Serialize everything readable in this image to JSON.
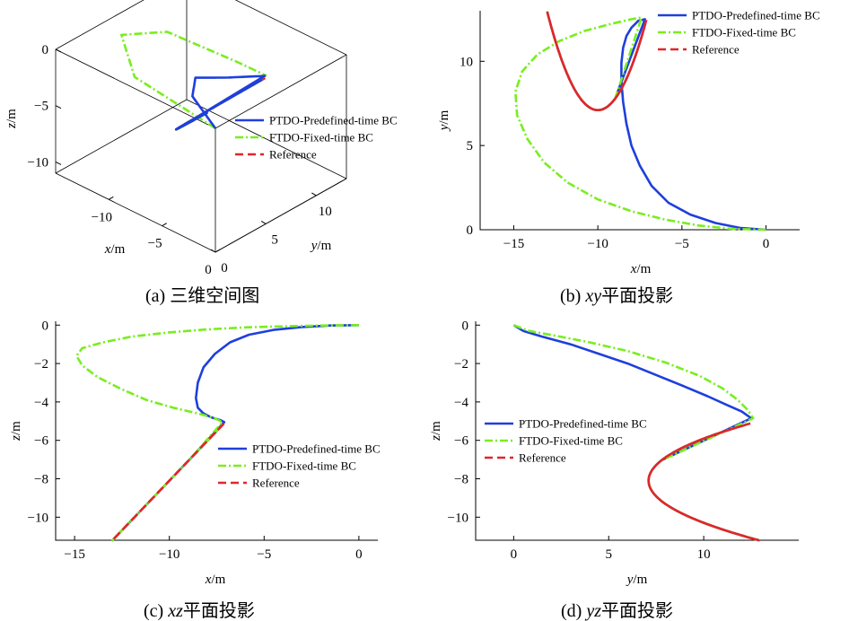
{
  "legend": {
    "pred": "PTDO-Predefined-time BC",
    "fixed": "FTDO-Fixed-time BC",
    "ref": "Reference"
  },
  "colors": {
    "pred": "#1f3fdc",
    "fixed": "#78ee1e",
    "ref": "#e2252b"
  },
  "captions": {
    "a": {
      "label": "(a) ",
      "var": "",
      "text": "三维空间图"
    },
    "b": {
      "label": "(b) ",
      "var": "xy",
      "text": "平面投影"
    },
    "c": {
      "label": "(c) ",
      "var": "xz",
      "text": "平面投影"
    },
    "d": {
      "label": "(d) ",
      "var": "yz",
      "text": "平面投影"
    }
  },
  "axis_labels": {
    "a": {
      "x": "x/m",
      "y": "y/m",
      "z": "z/m"
    },
    "b": {
      "x": "x/m",
      "y": "y/m"
    },
    "c": {
      "x": "x/m",
      "y": "z/m"
    },
    "d": {
      "x": "y/m",
      "y": "z/m"
    }
  },
  "chart_data": [
    {
      "id": "a",
      "type": "line",
      "projection": "3d",
      "xlim": [
        -15,
        0
      ],
      "ylim": [
        0,
        13
      ],
      "zlim": [
        -11,
        0
      ],
      "xticks": [
        -10,
        -5,
        0
      ],
      "yticks": [
        0,
        5,
        10
      ],
      "zticks": [
        0,
        -5,
        -10
      ],
      "legend_position": "center-right",
      "series": [
        {
          "name": "PTDO-Predefined-time BC",
          "key": "pred",
          "dash": "solid",
          "z_from": 0
        },
        {
          "name": "FTDO-Fixed-time BC",
          "key": "fixed",
          "dash": "dashdot",
          "z_from": 0
        },
        {
          "name": "Reference",
          "key": "ref",
          "dash": "dashed",
          "z_from": 0
        }
      ]
    },
    {
      "id": "b",
      "type": "line",
      "xlim": [
        -17,
        2
      ],
      "ylim": [
        0,
        13
      ],
      "xticks": [
        -15,
        -10,
        -5,
        0
      ],
      "yticks": [
        0,
        5,
        10
      ],
      "legend_position": "top-right",
      "series": [
        {
          "name": "PTDO-Predefined-time BC",
          "key": "pred",
          "dash": "solid",
          "x": [
            0,
            -1.5,
            -3,
            -4.5,
            -5.8,
            -6.8,
            -7.5,
            -8.0,
            -8.3,
            -8.5,
            -8.6,
            -8.6,
            -8.5,
            -8.3,
            -8.0,
            -7.6,
            -7.2
          ],
          "y": [
            0,
            0.1,
            0.4,
            0.9,
            1.6,
            2.6,
            3.8,
            5.0,
            6.3,
            7.6,
            8.8,
            9.9,
            10.8,
            11.5,
            12.0,
            12.4,
            12.5
          ]
        },
        {
          "name": "FTDO-Fixed-time BC",
          "key": "fixed",
          "dash": "dashdot",
          "x": [
            0,
            -2,
            -4,
            -6,
            -8,
            -10,
            -11.8,
            -13.2,
            -14.2,
            -14.8,
            -14.9,
            -14.5,
            -13.6,
            -12.3,
            -10.8,
            -9.3,
            -8.0,
            -7.4
          ],
          "y": [
            0,
            0.05,
            0.25,
            0.6,
            1.1,
            1.8,
            2.8,
            4.0,
            5.4,
            6.8,
            8.2,
            9.4,
            10.4,
            11.2,
            11.8,
            12.2,
            12.5,
            12.6
          ]
        },
        {
          "name": "Reference",
          "key": "ref",
          "dash": "dashed",
          "z_from": 1
        }
      ]
    },
    {
      "id": "c",
      "type": "line",
      "xlim": [
        -16,
        1
      ],
      "ylim": [
        -11.2,
        0.2
      ],
      "xticks": [
        -15,
        -10,
        -5,
        0
      ],
      "yticks": [
        0,
        -2,
        -4,
        -6,
        -8,
        -10
      ],
      "legend_position": "center-right",
      "series": [
        {
          "name": "PTDO-Predefined-time BC",
          "key": "pred",
          "dash": "solid",
          "x": [
            0,
            -1.5,
            -3,
            -4.5,
            -5.8,
            -6.8,
            -7.6,
            -8.2,
            -8.5,
            -8.6,
            -8.5,
            -8.2,
            -7.8,
            -7.3,
            -7.1
          ],
          "y": [
            0,
            -0.02,
            -0.1,
            -0.25,
            -0.5,
            -0.9,
            -1.5,
            -2.2,
            -3.0,
            -3.8,
            -4.3,
            -4.6,
            -4.8,
            -4.95,
            -5.05
          ]
        },
        {
          "name": "FTDO-Fixed-time BC",
          "key": "fixed",
          "dash": "dashdot",
          "x": [
            0,
            -2,
            -4,
            -6,
            -8,
            -10,
            -12,
            -13.5,
            -14.6,
            -14.9,
            -14.6,
            -13.8,
            -12.6,
            -11.2,
            -9.8,
            -8.5,
            -7.6,
            -7.2
          ],
          "y": [
            0,
            -0.02,
            -0.06,
            -0.12,
            -0.22,
            -0.38,
            -0.6,
            -0.9,
            -1.2,
            -1.6,
            -2.1,
            -2.7,
            -3.3,
            -3.9,
            -4.3,
            -4.6,
            -4.85,
            -5.05
          ]
        },
        {
          "name": "Reference",
          "key": "ref",
          "dash": "dashed",
          "z_from": 1
        }
      ]
    },
    {
      "id": "d",
      "type": "line",
      "xlim": [
        -2,
        15
      ],
      "ylim": [
        -11.2,
        0.2
      ],
      "xticks": [
        0,
        5,
        10
      ],
      "yticks": [
        0,
        -2,
        -4,
        -6,
        -8,
        -10
      ],
      "legend_position": "center-left",
      "series": [
        {
          "name": "PTDO-Predefined-time BC",
          "key": "pred",
          "dash": "solid",
          "x": [
            0,
            0.5,
            1.5,
            3.0,
            4.5,
            6.0,
            7.5,
            9.0,
            10.2,
            11.2,
            12.0,
            12.5
          ],
          "y": [
            0,
            -0.3,
            -0.6,
            -1.0,
            -1.5,
            -2.0,
            -2.6,
            -3.2,
            -3.7,
            -4.15,
            -4.5,
            -4.85
          ]
        },
        {
          "name": "FTDO-Fixed-time BC",
          "key": "fixed",
          "dash": "dashdot",
          "x": [
            0,
            0.8,
            2.2,
            4.0,
            6.0,
            8.0,
            9.8,
            11.0,
            11.8,
            12.3,
            12.6
          ],
          "y": [
            0,
            -0.3,
            -0.55,
            -0.9,
            -1.35,
            -1.95,
            -2.65,
            -3.3,
            -3.9,
            -4.4,
            -4.85
          ]
        },
        {
          "name": "Reference",
          "key": "ref",
          "dash": "dashed",
          "z_from": 1
        }
      ]
    }
  ]
}
